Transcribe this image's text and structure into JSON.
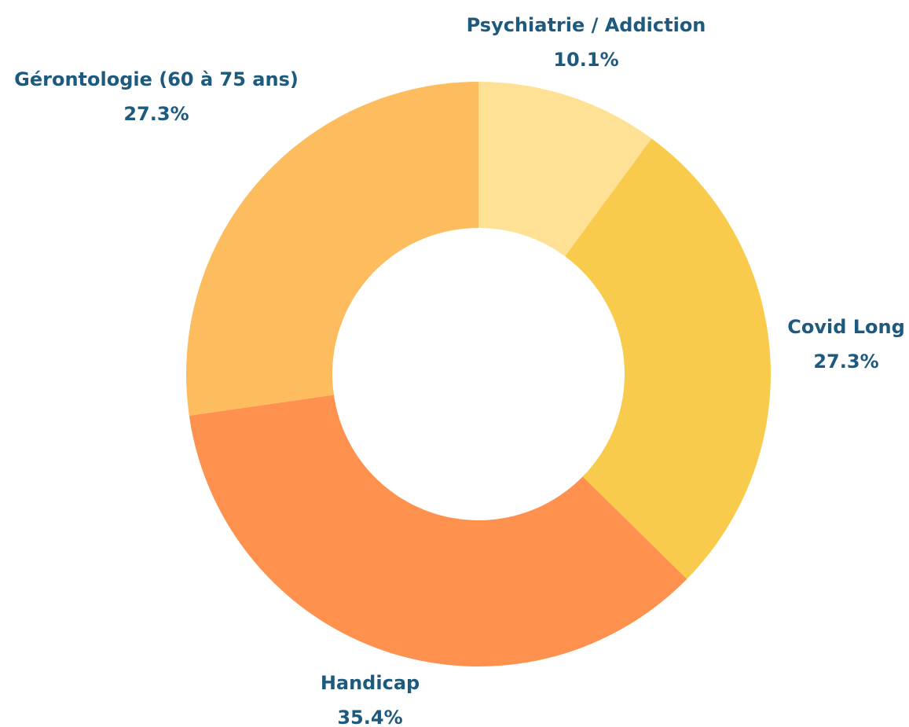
{
  "chart_data": {
    "type": "donut",
    "categories": [
      "Psychiatrie / Addiction",
      "Covid Long",
      "Handicap",
      "Gérontologie (60 à 75 ans)"
    ],
    "values": [
      10.1,
      27.3,
      35.4,
      27.3
    ],
    "value_labels": [
      "10.1%",
      "27.3%",
      "35.4%",
      "27.3%"
    ],
    "colors": [
      "#fee195",
      "#f9cb4c",
      "#fe914e",
      "#fdbc5d"
    ]
  }
}
